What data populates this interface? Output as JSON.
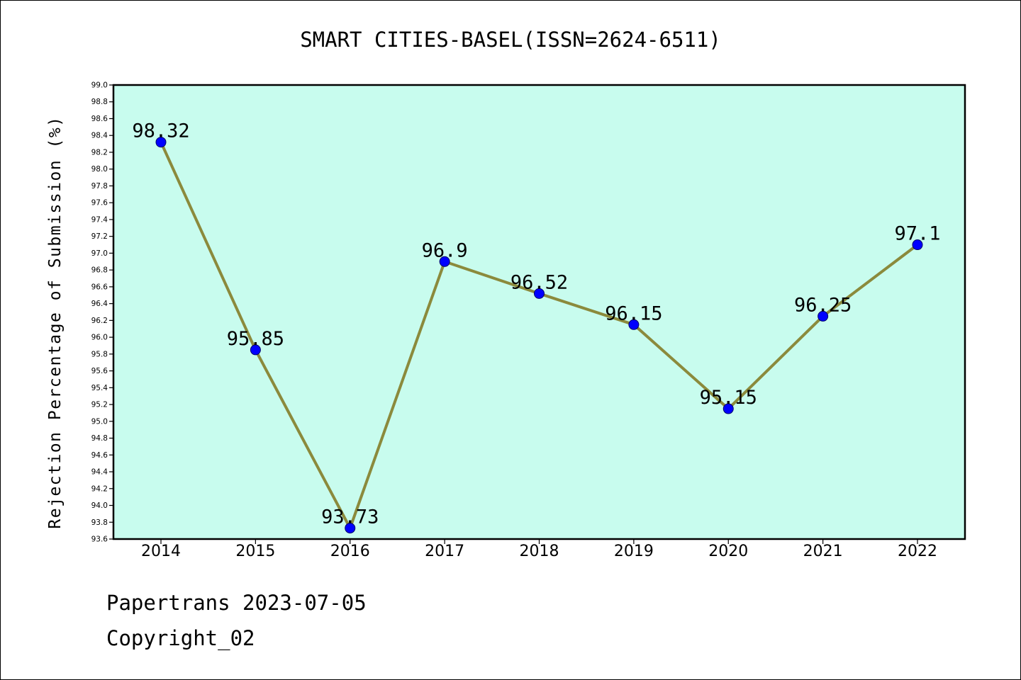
{
  "chart_data": {
    "type": "line",
    "title": "SMART CITIES-BASEL(ISSN=2624-6511)",
    "xlabel": "",
    "ylabel": "Rejection Percentage of Submission (%)",
    "categories": [
      "2014",
      "2015",
      "2016",
      "2017",
      "2018",
      "2019",
      "2020",
      "2021",
      "2022"
    ],
    "series": [
      {
        "values": [
          98.32,
          95.85,
          93.73,
          96.9,
          96.52,
          96.15,
          95.15,
          96.25,
          97.1
        ],
        "data_labels": [
          "98.32",
          "95.85",
          "93.73",
          "96.9",
          "96.52",
          "96.15",
          "95.15",
          "96.25",
          "97.1"
        ]
      }
    ],
    "ylim": [
      93.6,
      99.0
    ],
    "yticks": [
      "93.6",
      "93.8",
      "94.0",
      "94.2",
      "94.4",
      "94.6",
      "94.8",
      "95.0",
      "95.2",
      "95.4",
      "95.6",
      "95.8",
      "96.0",
      "96.2",
      "96.4",
      "96.6",
      "96.8",
      "97.0",
      "97.2",
      "97.4",
      "97.6",
      "97.8",
      "98.0",
      "98.2",
      "98.4",
      "98.6",
      "98.8",
      "99.0"
    ],
    "grid": false,
    "colors": {
      "plot_background": "#c8fcee",
      "line": "#8b8a3c",
      "marker": "#0000ff"
    }
  },
  "footer": {
    "date_line": "Papertrans 2023-07-05",
    "copyright_line": "Copyright_02"
  }
}
